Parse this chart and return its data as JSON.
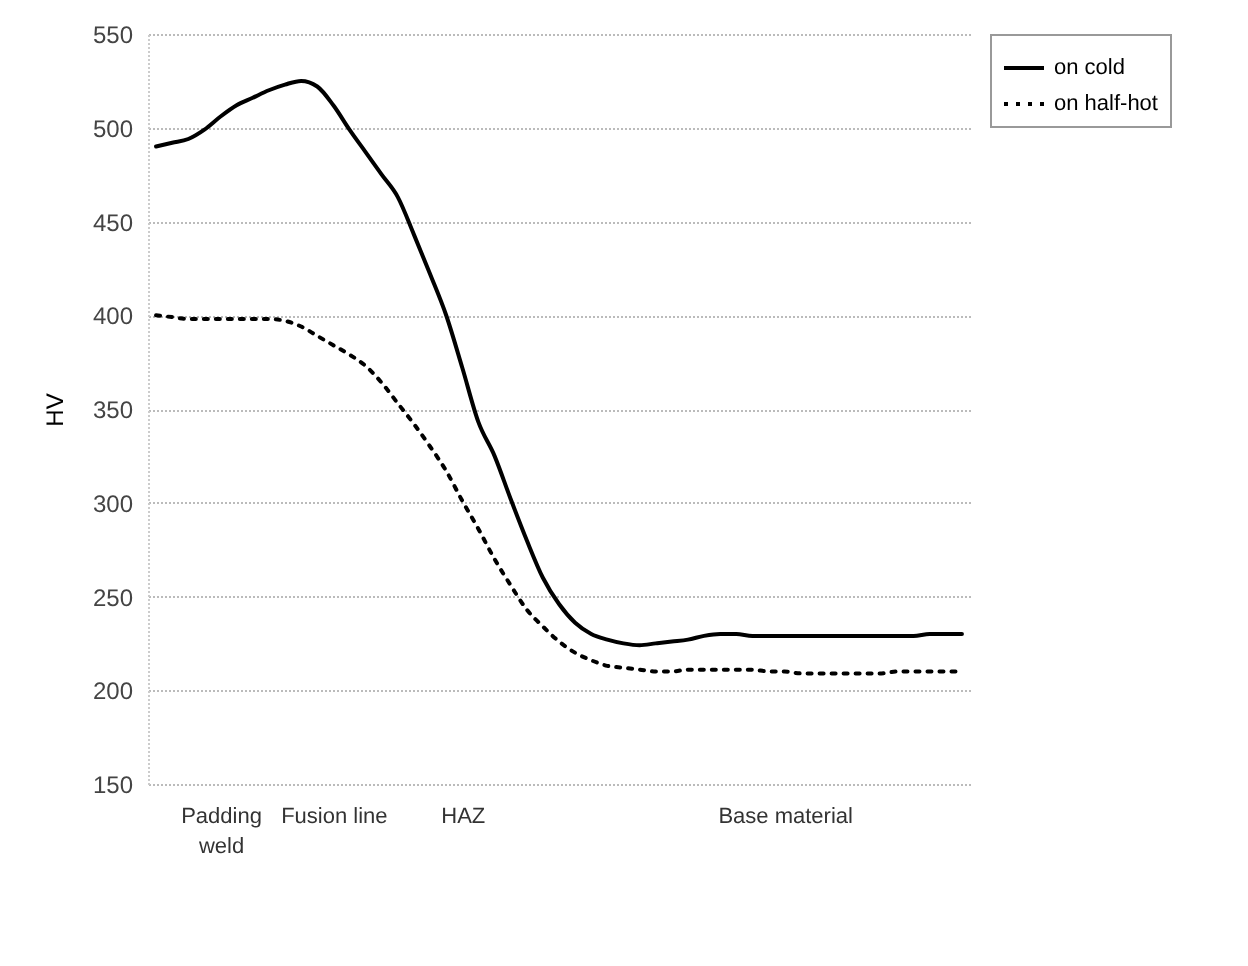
{
  "chart_data": {
    "type": "line",
    "ylabel": "HV",
    "categories": [
      null,
      null,
      null,
      null,
      "Padding weld",
      null,
      null,
      null,
      null,
      null,
      null,
      "Fusion line",
      null,
      null,
      null,
      null,
      null,
      null,
      null,
      "HAZ",
      null,
      null,
      null,
      null,
      null,
      null,
      null,
      null,
      null,
      null,
      null,
      null,
      null,
      null,
      null,
      null,
      null,
      null,
      null,
      "Base material",
      null,
      null,
      null,
      null,
      null,
      null,
      null,
      null,
      null,
      null,
      null
    ],
    "series": [
      {
        "name": "on cold",
        "color": "#000000",
        "line_style": "solid",
        "values": [
          490,
          492,
          494,
          499,
          506,
          512,
          516,
          520,
          523,
          525,
          522,
          512,
          499,
          487,
          475,
          463,
          443,
          422,
          400,
          372,
          343,
          325,
          302,
          280,
          260,
          246,
          236,
          230,
          227,
          225,
          224,
          225,
          226,
          227,
          229,
          230,
          230,
          229,
          229,
          229,
          229,
          229,
          229,
          229,
          229,
          229,
          229,
          229,
          230,
          230,
          230
        ]
      },
      {
        "name": "on half-hot",
        "color": "#000000",
        "line_style": "dotted",
        "values": [
          400,
          399,
          398,
          398,
          398,
          398,
          398,
          398,
          397,
          394,
          389,
          384,
          379,
          373,
          364,
          353,
          342,
          330,
          317,
          301,
          286,
          270,
          256,
          243,
          234,
          226,
          220,
          216,
          213,
          212,
          211,
          210,
          210,
          211,
          211,
          211,
          211,
          211,
          210,
          210,
          209,
          209,
          209,
          209,
          209,
          209,
          210,
          210,
          210,
          210,
          210
        ]
      }
    ],
    "ylim": [
      150,
      550
    ],
    "yticks": [
      150,
      200,
      250,
      300,
      350,
      400,
      450,
      500,
      550
    ],
    "grid": "y",
    "legend": "right"
  }
}
